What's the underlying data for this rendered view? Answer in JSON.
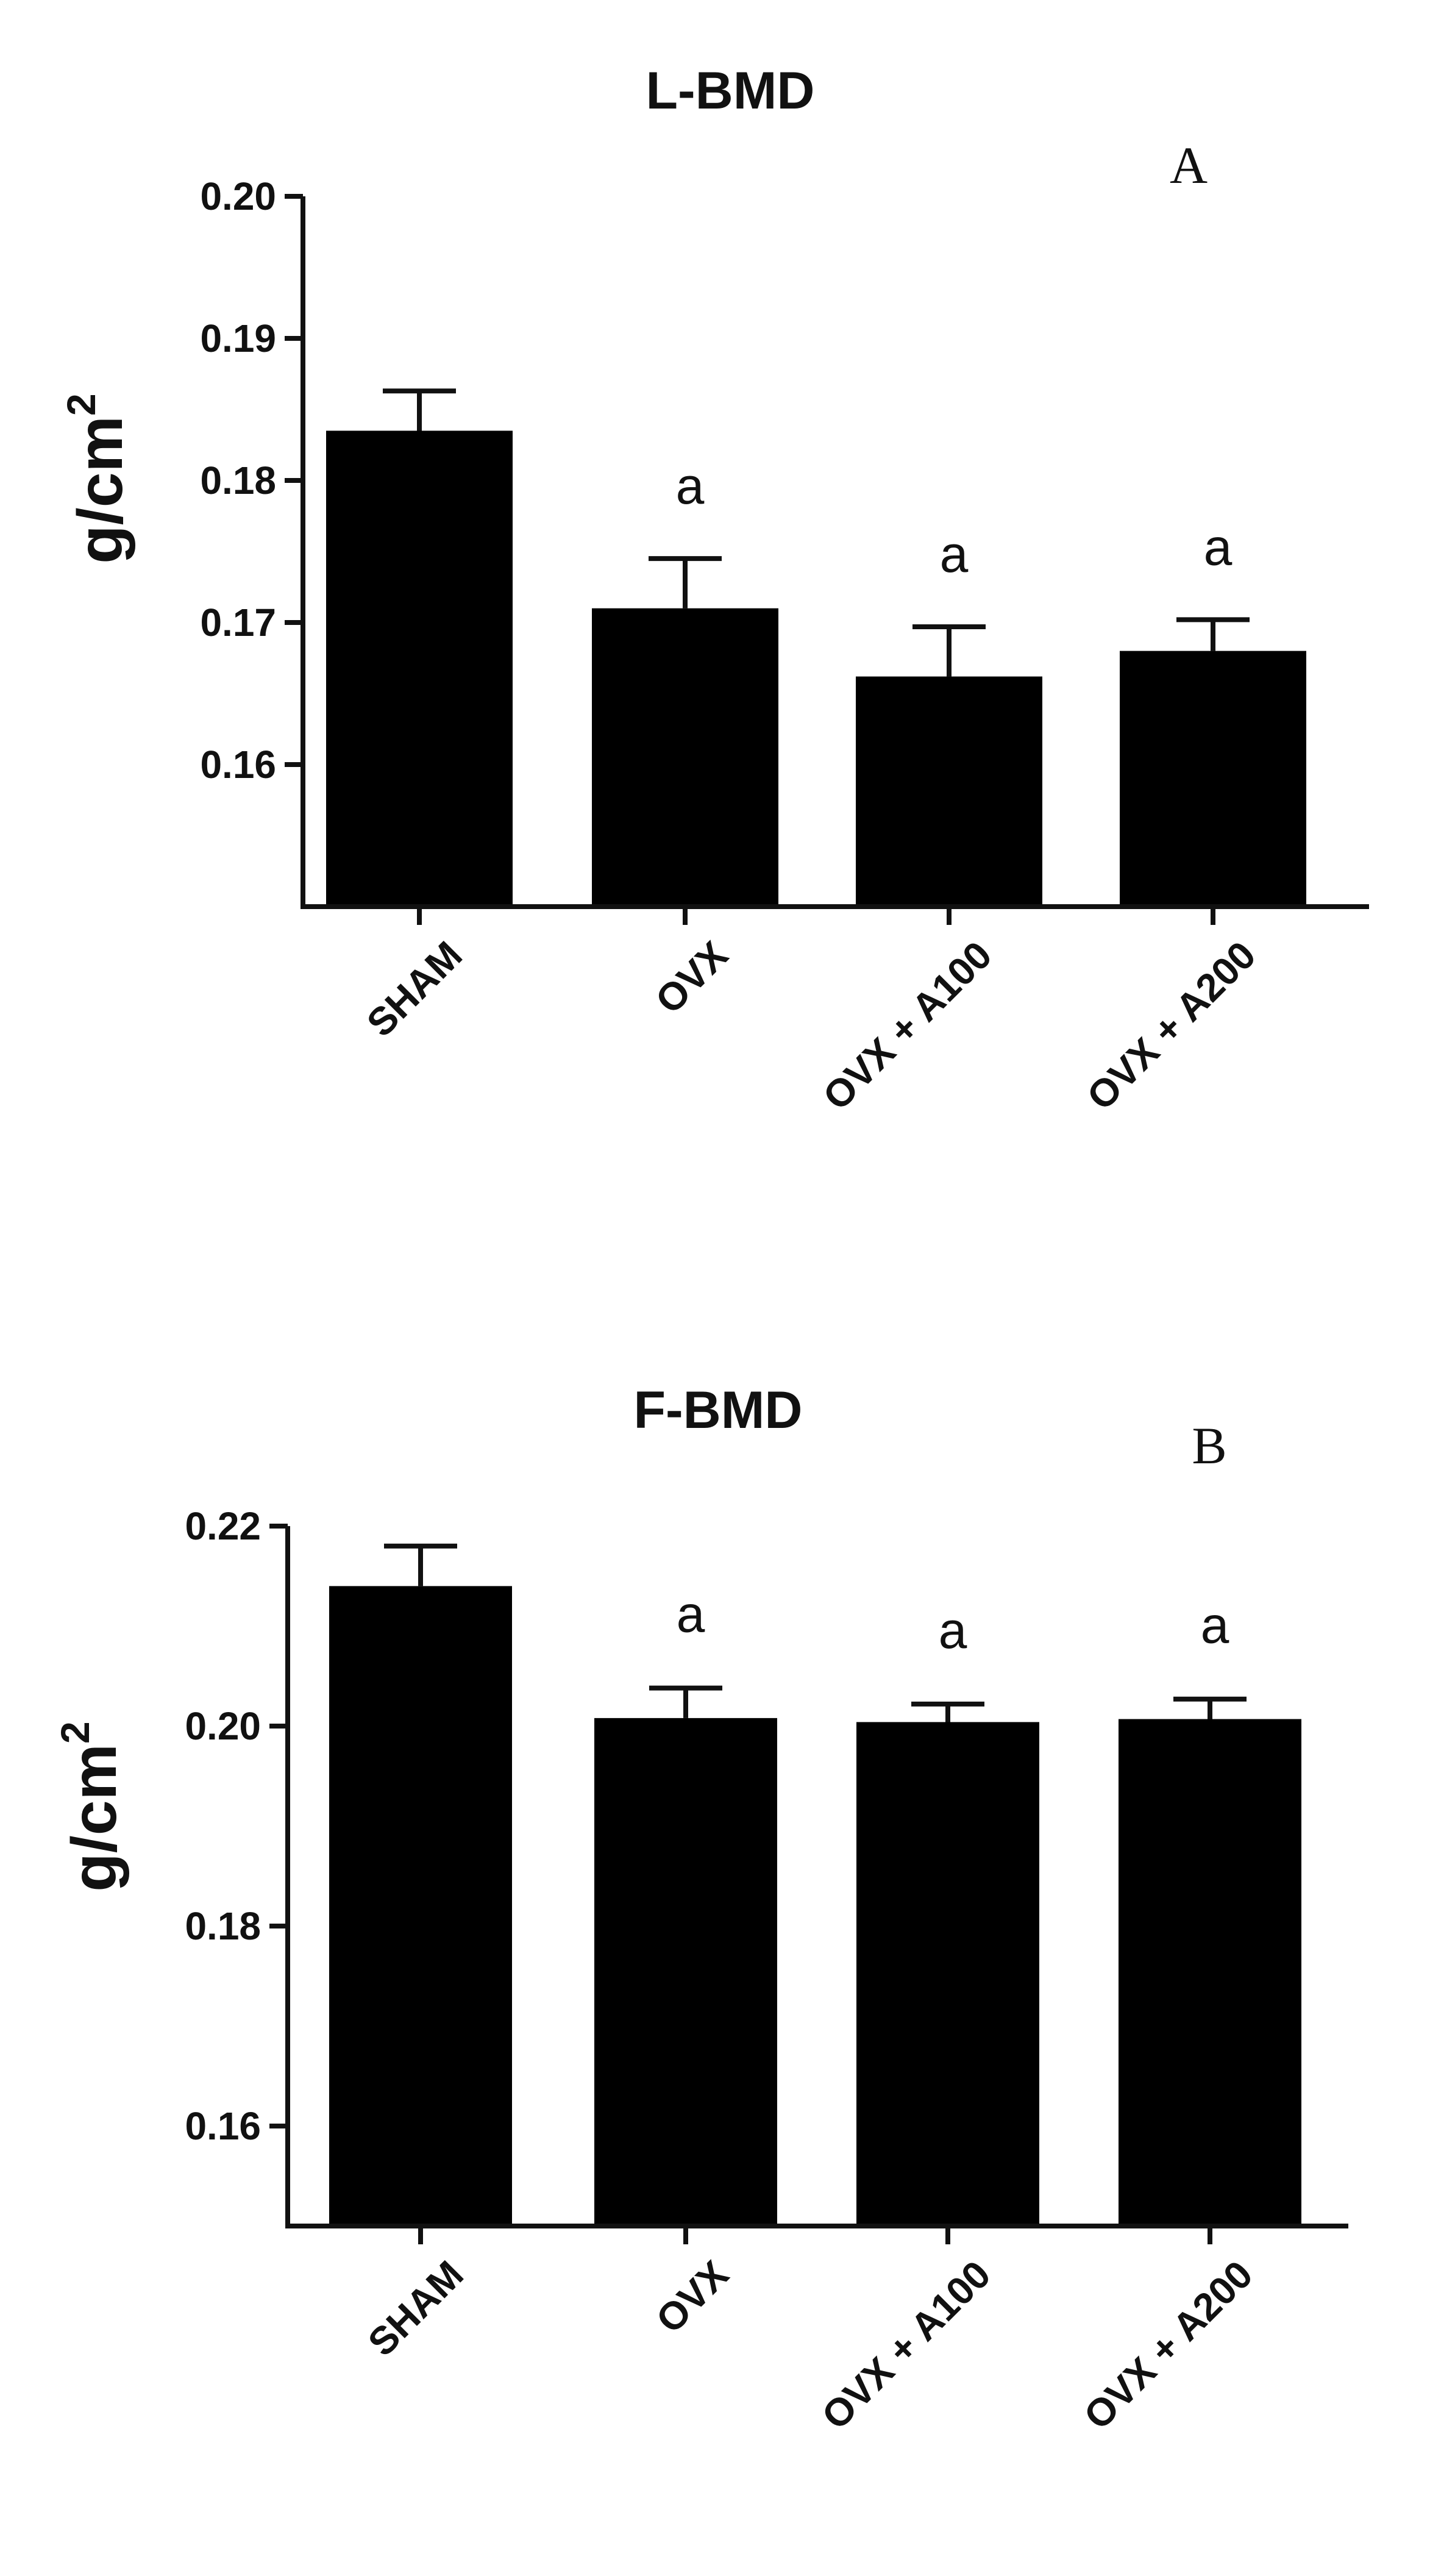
{
  "chart_data": [
    {
      "type": "bar",
      "panel_label": "A",
      "title": "L-BMD",
      "ylabel": "g/cm",
      "ylabel_sup": "2",
      "ylim": [
        0.15,
        0.2
      ],
      "yticks": [
        "0.16",
        "0.17",
        "0.18",
        "0.19",
        "0.20"
      ],
      "categories": [
        "SHAM",
        "OVX",
        "OVX + A100",
        "OVX + A200"
      ],
      "values": [
        0.1835,
        0.171,
        0.1662,
        0.168
      ],
      "errors": [
        0.0028,
        0.0035,
        0.0035,
        0.0022
      ],
      "annotations": [
        "",
        "a",
        "a",
        "a"
      ],
      "color": "#000000"
    },
    {
      "type": "bar",
      "panel_label": "B",
      "title": "F-BMD",
      "ylabel": "g/cm",
      "ylabel_sup": "2",
      "ylim": [
        0.15,
        0.22
      ],
      "yticks": [
        "0.16",
        "0.18",
        "0.20",
        "0.22"
      ],
      "categories": [
        "SHAM",
        "OVX",
        "OVX + A100",
        "OVX + A200"
      ],
      "values": [
        0.214,
        0.2008,
        0.2004,
        0.2007
      ],
      "errors": [
        0.004,
        0.003,
        0.0018,
        0.002
      ],
      "annotations": [
        "",
        "a",
        "a",
        "a"
      ],
      "color": "#000000"
    }
  ]
}
